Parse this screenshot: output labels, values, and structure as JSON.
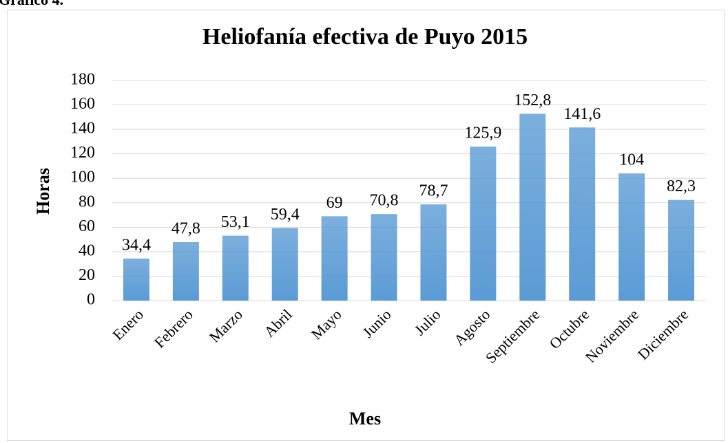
{
  "caption": "Gráfico 4.",
  "chart_data": {
    "type": "bar",
    "title": "Heliofanía efectiva de Puyo 2015",
    "x_label": "Mes",
    "y_label": "Horas",
    "categories": [
      "Enero",
      "Febrero",
      "Marzo",
      "Abril",
      "Mayo",
      "Junio",
      "Julio",
      "Agosto",
      "Septiembre",
      "Octubre",
      "Noviembre",
      "Diciembre"
    ],
    "values": [
      34.4,
      47.8,
      53.1,
      59.4,
      69,
      70.8,
      78.7,
      125.9,
      152.8,
      141.6,
      104,
      82.3
    ],
    "value_labels": [
      "34,4",
      "47,8",
      "53,1",
      "59,4",
      "69",
      "70,8",
      "78,7",
      "125,9",
      "152,8",
      "141,6",
      "104",
      "82,3"
    ],
    "color": "#5b9bd5",
    "ylim": [
      0,
      180
    ],
    "yticks": [
      0,
      20,
      40,
      60,
      80,
      100,
      120,
      140,
      160,
      180
    ],
    "grid": true
  }
}
